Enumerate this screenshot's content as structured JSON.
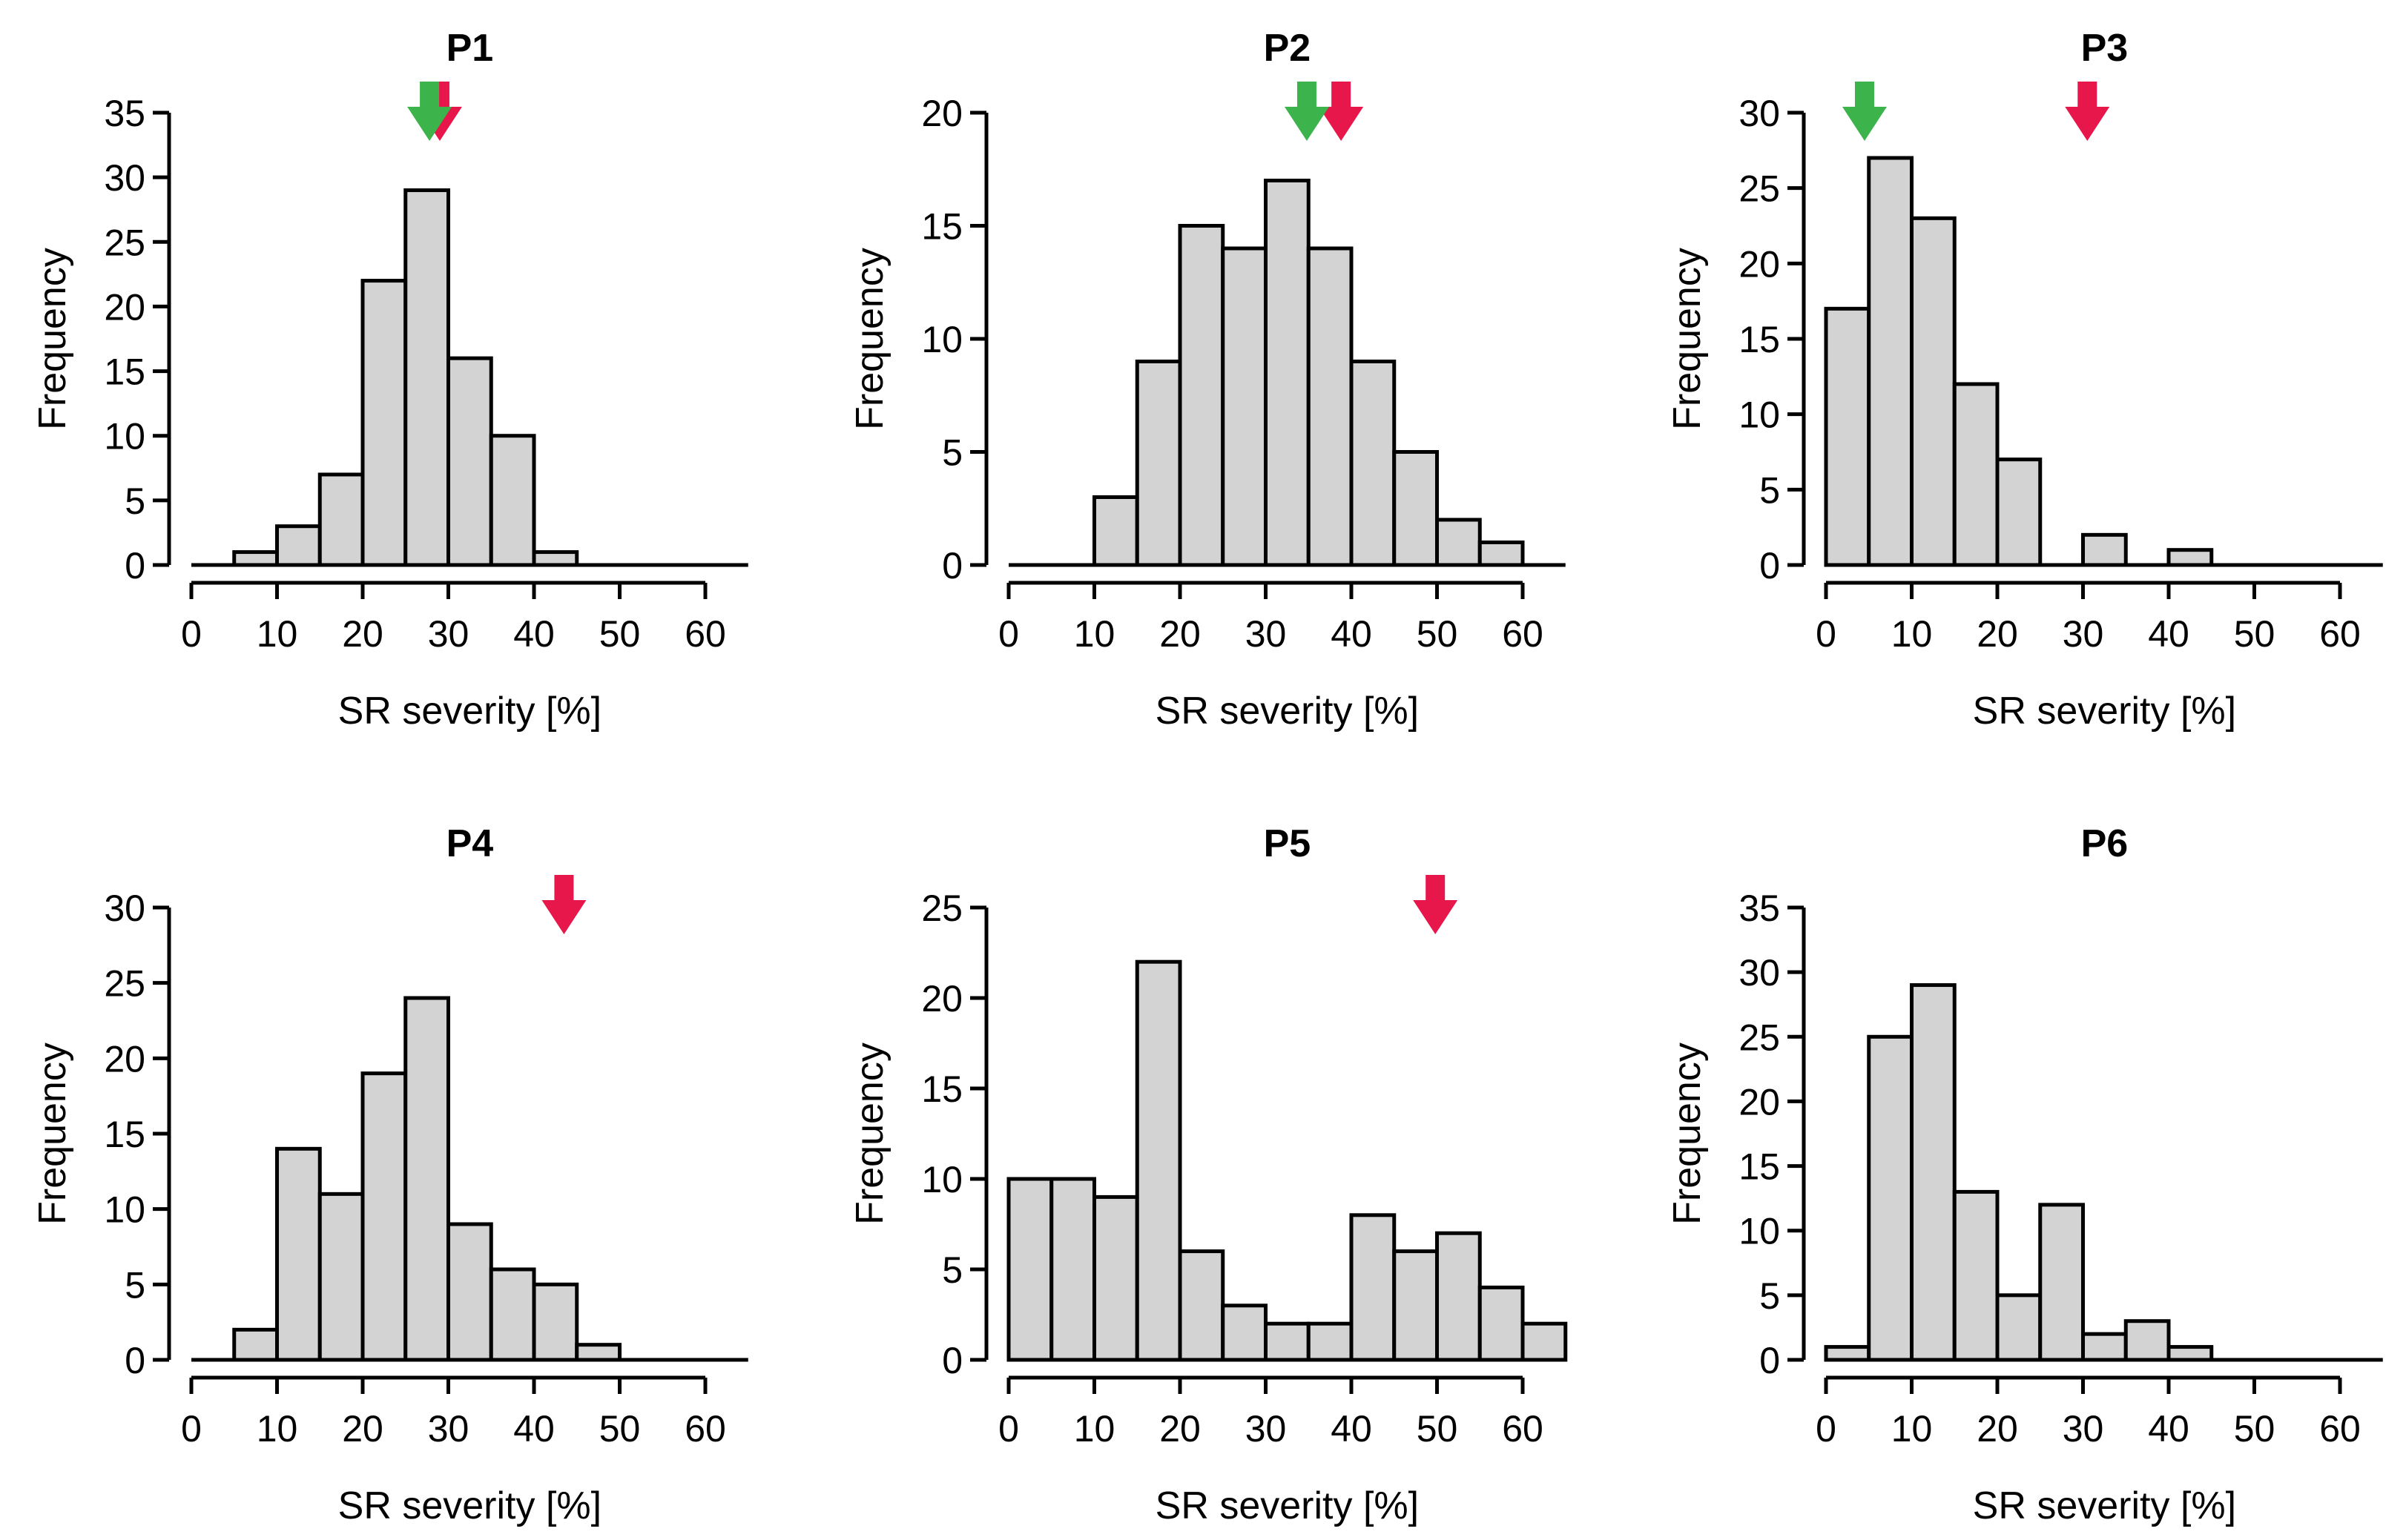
{
  "colors": {
    "bar_fill": "#d3d3d3",
    "bar_stroke": "#000000",
    "green_arrow": "#3cb44b",
    "red_arrow": "#e8174b"
  },
  "chart_data": [
    {
      "type": "bar",
      "title": "P1",
      "xlabel": "SR severity [%]",
      "ylabel": "Frequency",
      "bin_width": 5,
      "bin_starts": [
        5,
        10,
        15,
        20,
        25,
        30,
        35,
        40
      ],
      "values": [
        1,
        3,
        7,
        22,
        29,
        16,
        10,
        1
      ],
      "xlim": [
        0,
        65
      ],
      "xticks": [
        0,
        10,
        20,
        30,
        40,
        50,
        60
      ],
      "ylim": [
        0,
        35
      ],
      "yticks": [
        0,
        5,
        10,
        15,
        20,
        25,
        30,
        35
      ],
      "markers": [
        {
          "color": "green",
          "x": 27.8
        },
        {
          "color": "red",
          "x": 29
        }
      ]
    },
    {
      "type": "bar",
      "title": "P2",
      "xlabel": "SR severity [%]",
      "ylabel": "Frequency",
      "bin_width": 5,
      "bin_starts": [
        10,
        15,
        20,
        25,
        30,
        35,
        40,
        45,
        50,
        55
      ],
      "values": [
        3,
        9,
        15,
        14,
        17,
        14,
        9,
        5,
        2,
        1
      ],
      "xlim": [
        0,
        65
      ],
      "xticks": [
        0,
        10,
        20,
        30,
        40,
        50,
        60
      ],
      "ylim": [
        0,
        20
      ],
      "yticks": [
        0,
        5,
        10,
        15,
        20
      ],
      "markers": [
        {
          "color": "green",
          "x": 34.8
        },
        {
          "color": "red",
          "x": 38.8
        }
      ]
    },
    {
      "type": "bar",
      "title": "P3",
      "xlabel": "SR severity [%]",
      "ylabel": "Frequency",
      "bin_width": 5,
      "bin_starts": [
        0,
        5,
        10,
        15,
        20,
        25,
        30,
        35,
        40
      ],
      "values": [
        17,
        27,
        23,
        12,
        7,
        0,
        2,
        0,
        1
      ],
      "xlim": [
        0,
        65
      ],
      "xticks": [
        0,
        10,
        20,
        30,
        40,
        50,
        60
      ],
      "ylim": [
        0,
        30
      ],
      "yticks": [
        0,
        5,
        10,
        15,
        20,
        25,
        30
      ],
      "markers": [
        {
          "color": "green",
          "x": 4.5
        },
        {
          "color": "red",
          "x": 30.5
        }
      ]
    },
    {
      "type": "bar",
      "title": "P4",
      "xlabel": "SR severity [%]",
      "ylabel": "Frequency",
      "bin_width": 5,
      "bin_starts": [
        5,
        10,
        15,
        20,
        25,
        30,
        35,
        40,
        45
      ],
      "values": [
        2,
        14,
        11,
        19,
        24,
        9,
        6,
        5,
        1
      ],
      "xlim": [
        0,
        65
      ],
      "xticks": [
        0,
        10,
        20,
        30,
        40,
        50,
        60
      ],
      "ylim": [
        0,
        30
      ],
      "yticks": [
        0,
        5,
        10,
        15,
        20,
        25,
        30
      ],
      "markers": [
        {
          "color": "red",
          "x": 43.5
        }
      ]
    },
    {
      "type": "bar",
      "title": "P5",
      "xlabel": "SR severity [%]",
      "ylabel": "Frequency",
      "bin_width": 5,
      "bin_starts": [
        0,
        5,
        10,
        15,
        20,
        25,
        30,
        35,
        40,
        45,
        50,
        55,
        60
      ],
      "values": [
        10,
        10,
        9,
        22,
        6,
        3,
        2,
        2,
        8,
        6,
        7,
        4,
        2
      ],
      "xlim": [
        0,
        65
      ],
      "xticks": [
        0,
        10,
        20,
        30,
        40,
        50,
        60
      ],
      "ylim": [
        0,
        25
      ],
      "yticks": [
        0,
        5,
        10,
        15,
        20,
        25
      ],
      "markers": [
        {
          "color": "red",
          "x": 49.8
        }
      ]
    },
    {
      "type": "bar",
      "title": "P6",
      "xlabel": "SR severity [%]",
      "ylabel": "Frequency",
      "bin_width": 5,
      "bin_starts": [
        0,
        5,
        10,
        15,
        20,
        25,
        30,
        35,
        40
      ],
      "values": [
        1,
        25,
        29,
        13,
        5,
        12,
        2,
        3,
        1
      ],
      "xlim": [
        0,
        65
      ],
      "xticks": [
        0,
        10,
        20,
        30,
        40,
        50,
        60
      ],
      "ylim": [
        0,
        35
      ],
      "yticks": [
        0,
        5,
        10,
        15,
        20,
        25,
        30,
        35
      ],
      "markers": []
    }
  ]
}
